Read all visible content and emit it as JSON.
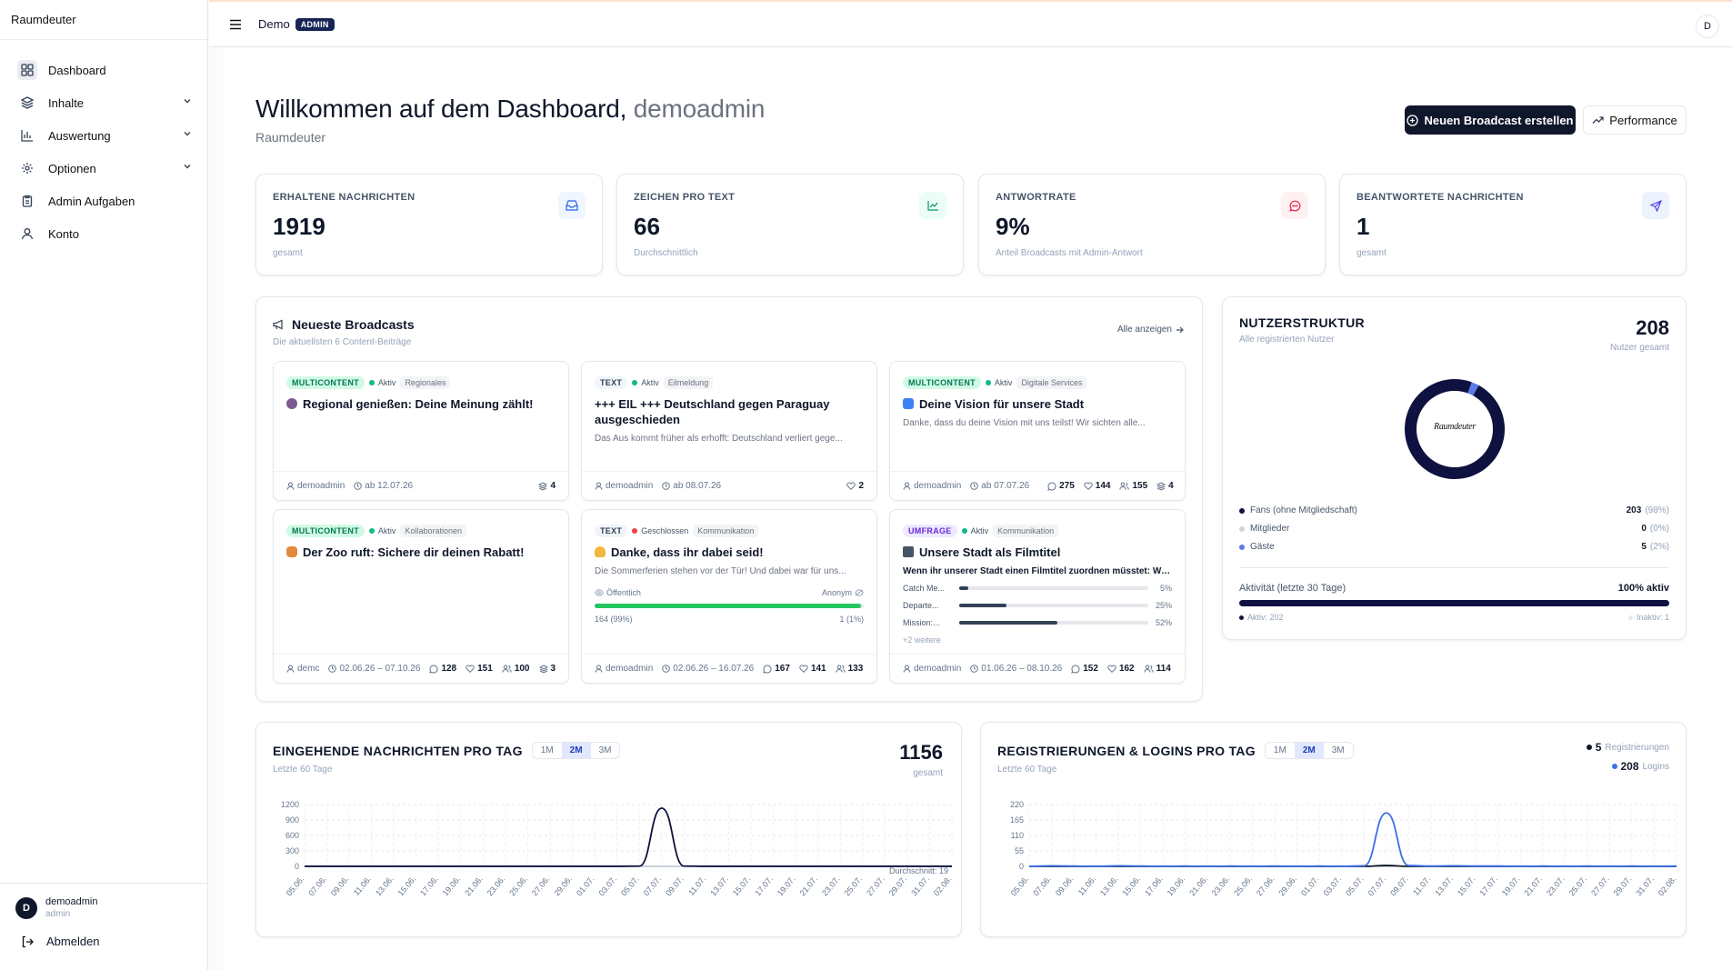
{
  "app": {
    "brand": "Raumdeuter"
  },
  "sidebar": {
    "items": [
      {
        "label": "Dashboard"
      },
      {
        "label": "Inhalte"
      },
      {
        "label": "Auswertung"
      },
      {
        "label": "Optionen"
      },
      {
        "label": "Admin Aufgaben"
      },
      {
        "label": "Konto"
      }
    ],
    "user": {
      "initial": "D",
      "name": "demoadmin",
      "role": "admin"
    },
    "logout_label": "Abmelden"
  },
  "topbar": {
    "project": "Demo",
    "badge": "ADMIN",
    "avatar": "D"
  },
  "header": {
    "title": "Willkommen auf dem Dashboard,",
    "user": "demoadmin",
    "subtitle": "Raumdeuter",
    "primary_button": "Neuen Broadcast erstellen",
    "secondary_button": "Performance"
  },
  "stats": [
    {
      "label": "ERHALTENE NACHRICHTEN",
      "value": "1919",
      "sub": "gesamt",
      "icon": "inbox-icon",
      "color": "#2563eb"
    },
    {
      "label": "ZEICHEN PRO TEXT",
      "value": "66",
      "sub": "Durchschnittlich",
      "icon": "chart-icon",
      "color": "#059669"
    },
    {
      "label": "ANTWORTRATE",
      "value": "9%",
      "sub": "Anteil Broadcasts mit Admin-Antwort",
      "icon": "message-icon",
      "color": "#e11d48"
    },
    {
      "label": "BEANTWORTETE NACHRICHTEN",
      "value": "1",
      "sub": "gesamt",
      "icon": "send-icon",
      "color": "#4f46e5"
    }
  ],
  "broadcasts": {
    "title": "Neueste Broadcasts",
    "subtitle": "Die aktuellsten 6 Content-Beiträge",
    "link": "Alle anzeigen",
    "items": [
      {
        "type": "MULTICONTENT",
        "status": "Aktiv",
        "category": "Regionales",
        "title": "Regional genießen: Deine Meinung zählt!",
        "desc": "",
        "author": "demoadmin",
        "date": "ab 12.07.26",
        "stats": {
          "layers": "4"
        }
      },
      {
        "type": "TEXT",
        "status": "Aktiv",
        "category": "Eilmeldung",
        "title": "+++ EIL +++ Deutschland gegen Paraguay ausgeschieden",
        "desc": "Das Aus kommt früher als erhofft: Deutschland verliert gege...",
        "author": "demoadmin",
        "date": "ab 08.07.26",
        "stats": {
          "likes": "2"
        }
      },
      {
        "type": "MULTICONTENT",
        "status": "Aktiv",
        "category": "Digitale Services",
        "title": "Deine Vision für unsere Stadt",
        "desc": "Danke, dass du deine Vision mit uns teilst! Wir sichten alle...",
        "author": "demoadmin",
        "date": "ab 07.07.26",
        "stats": {
          "comments": "275",
          "likes": "144",
          "users": "155",
          "layers": "4"
        }
      },
      {
        "type": "MULTICONTENT",
        "status": "Aktiv",
        "category": "Kollaborationen",
        "title": "Der Zoo ruft: Sichere dir deinen Rabatt!",
        "desc": "",
        "author": "demc",
        "date": "02.06.26 – 07.10.26",
        "stats": {
          "comments": "128",
          "likes": "151",
          "users": "100",
          "layers": "3"
        }
      },
      {
        "type": "TEXT",
        "status": "Geschlossen",
        "category": "Kommunikation",
        "title": "Danke, dass ihr dabei seid!",
        "desc": "Die Sommerferien stehen vor der Tür! Und dabei war für uns...",
        "author": "demoadmin",
        "date": "02.06.26 – 16.07.26",
        "stats": {
          "comments": "167",
          "likes": "141",
          "users": "133"
        },
        "visibility": "Öffentlich",
        "anon": "Anonym",
        "left": "164 (99%)",
        "right": "1 (1%)",
        "progress": 0.99
      },
      {
        "type": "UMFRAGE",
        "status": "Aktiv",
        "category": "Kommunikation",
        "title": "Unsere Stadt als Filmtitel",
        "desc": "Wenn ihr unserer Stadt einen Filmtitel zuordnen müsstet: Welch...",
        "author": "demoadmin",
        "date": "01.06.26 – 08.10.26",
        "stats": {
          "comments": "152",
          "likes": "162",
          "users": "114"
        },
        "options": [
          {
            "label": "Catch Me...",
            "value": "5%",
            "pct": 5
          },
          {
            "label": "Departe...",
            "value": "25%",
            "pct": 25
          },
          {
            "label": "Mission:...",
            "value": "52%",
            "pct": 52
          }
        ],
        "more": "+2 weitere"
      }
    ]
  },
  "user_structure": {
    "title": "NUTZERSTRUKTUR",
    "subtitle": "Alle registrierten Nutzer",
    "total": "208",
    "total_label": "Nutzer gesamt",
    "logo_text": "Raumdeuter",
    "legend": [
      {
        "label": "Fans (ohne Mitgliedschaft)",
        "count": "203",
        "pct": "(98%)",
        "color": "#0f1240"
      },
      {
        "label": "Mitglieder",
        "count": "0",
        "pct": "(0%)",
        "color": "#d1d5db"
      },
      {
        "label": "Gäste",
        "count": "5",
        "pct": "(2%)",
        "color": "#5b7be8"
      }
    ],
    "activity_label": "Aktivität (letzte 30 Tage)",
    "activity_value": "100% aktiv",
    "activity_fraction": 1.0,
    "active": "Aktiv: 202",
    "inactive": "Inaktiv: 1"
  },
  "chart_messages": {
    "title": "EINGEHENDE NACHRICHTEN PRO TAG",
    "subtitle": "Letzte 60 Tage",
    "total": "1156",
    "total_label": "gesamt",
    "ranges": [
      "1M",
      "2M",
      "3M"
    ],
    "active_range": "2M",
    "avg_label": "Durchschnitt: 19"
  },
  "chart_registrations": {
    "title": "REGISTRIERUNGEN & LOGINS PRO TAG",
    "subtitle": "Letzte 60 Tage",
    "ranges": [
      "1M",
      "2M",
      "3M"
    ],
    "active_range": "2M",
    "legend": [
      {
        "count": "5",
        "label": "Registrierungen",
        "color": "#0f172a"
      },
      {
        "count": "208",
        "label": "Logins",
        "color": "#3b6fe8"
      }
    ]
  },
  "chart_data": [
    {
      "type": "line",
      "title": "EINGEHENDE NACHRICHTEN PRO TAG",
      "x": [
        "05.06.",
        "07.06.",
        "09.06.",
        "11.06.",
        "13.06.",
        "15.06.",
        "17.06.",
        "19.06.",
        "21.06.",
        "23.06.",
        "25.06.",
        "27.06.",
        "29.06.",
        "01.07.",
        "03.07.",
        "05.07.",
        "07.07.",
        "09.07.",
        "11.07.",
        "13.07.",
        "15.07.",
        "17.07.",
        "19.07.",
        "21.07.",
        "23.07.",
        "25.07.",
        "27.07.",
        "29.07.",
        "31.07.",
        "02.08."
      ],
      "yticks": [
        "1200",
        "900",
        "600",
        "300",
        "0"
      ],
      "ylim": [
        0,
        1200
      ],
      "series": [
        {
          "values": [
            1,
            1,
            1,
            1,
            1,
            1,
            1,
            1,
            1,
            1,
            1,
            1,
            1,
            1,
            1,
            5,
            1130,
            5,
            1,
            1,
            1,
            1,
            1,
            1,
            1,
            1,
            1,
            1,
            1,
            1
          ]
        }
      ],
      "annotation": "Durchschnitt: 19"
    },
    {
      "type": "line",
      "title": "REGISTRIERUNGEN & LOGINS PRO TAG",
      "x": [
        "05.06.",
        "07.06.",
        "09.06.",
        "11.06.",
        "13.06.",
        "15.06.",
        "17.06.",
        "19.06.",
        "21.06.",
        "23.06.",
        "25.06.",
        "27.06.",
        "29.06.",
        "01.07.",
        "03.07.",
        "05.07.",
        "07.07.",
        "09.07.",
        "11.07.",
        "13.07.",
        "15.07.",
        "17.07.",
        "19.07.",
        "21.07.",
        "23.07.",
        "25.07.",
        "27.07.",
        "29.07.",
        "31.07.",
        "02.08."
      ],
      "yticks": [
        "220",
        "165",
        "110",
        "55",
        "0"
      ],
      "ylim": [
        0,
        220
      ],
      "series": [
        {
          "name": "Registrierungen",
          "values": [
            0,
            0,
            0,
            0,
            0,
            0,
            0,
            0,
            0,
            0,
            0,
            0,
            0,
            0,
            0,
            0,
            3,
            0,
            0,
            0,
            0,
            0,
            0,
            0,
            0,
            0,
            0,
            0,
            0,
            0
          ]
        },
        {
          "name": "Logins",
          "values": [
            0,
            2,
            1,
            0,
            2,
            1,
            0,
            1,
            0,
            1,
            0,
            1,
            0,
            1,
            0,
            2,
            190,
            3,
            1,
            2,
            1,
            1,
            0,
            1,
            0,
            1,
            0,
            1,
            0,
            1
          ]
        }
      ]
    }
  ]
}
